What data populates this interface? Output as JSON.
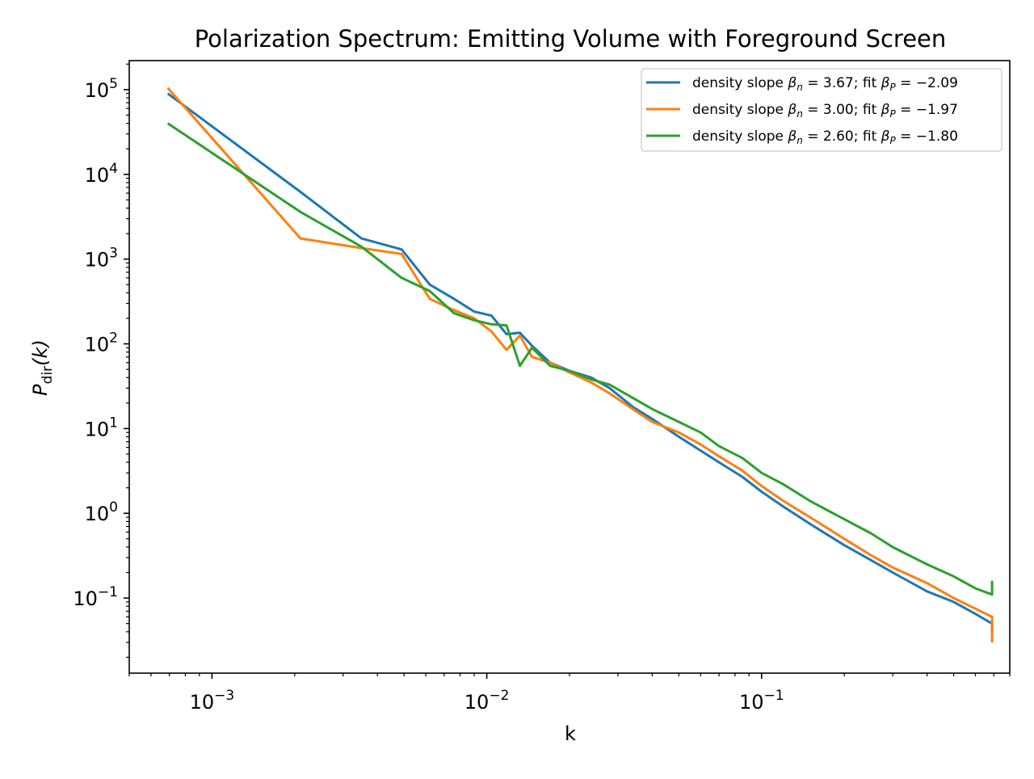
{
  "chart_data": {
    "type": "line",
    "title": "Polarization Spectrum: Emitting Volume with Foreground Screen",
    "xlabel": "k",
    "ylabel": {
      "main": "P",
      "sub": "dir",
      "rest": "(k)"
    },
    "xscale": "log",
    "yscale": "log",
    "xlim": [
      0.0005,
      0.8
    ],
    "ylim": [
      0.013,
      220000
    ],
    "grid": false,
    "legend_position": "top-right",
    "x_ticks": [
      {
        "value": 0.001,
        "base": "10",
        "exp": "−3"
      },
      {
        "value": 0.01,
        "base": "10",
        "exp": "−2"
      },
      {
        "value": 0.1,
        "base": "10",
        "exp": "−1"
      }
    ],
    "y_ticks": [
      {
        "value": 100000,
        "base": "10",
        "exp": "5"
      },
      {
        "value": 10000,
        "base": "10",
        "exp": "4"
      },
      {
        "value": 1000,
        "base": "10",
        "exp": "3"
      },
      {
        "value": 100,
        "base": "10",
        "exp": "2"
      },
      {
        "value": 10,
        "base": "10",
        "exp": "1"
      },
      {
        "value": 1,
        "base": "10",
        "exp": "0"
      },
      {
        "value": 0.1,
        "base": "10",
        "exp": "−1"
      }
    ],
    "series": [
      {
        "name": "density slope βn = 3.67; fit βP = −2.09",
        "legend_parts": {
          "prefix": "density slope ",
          "b1": "β",
          "s1": "n",
          "m1": " = 3.67; fit ",
          "b2": "β",
          "s2": "P",
          "m2": " = −2.09"
        },
        "color": "#1f77b4",
        "x": [
          0.00069,
          0.0021,
          0.0035,
          0.0049,
          0.0062,
          0.0076,
          0.009,
          0.0104,
          0.0118,
          0.0132,
          0.0146,
          0.017,
          0.02,
          0.024,
          0.028,
          0.034,
          0.04,
          0.05,
          0.06,
          0.07,
          0.085,
          0.1,
          0.12,
          0.15,
          0.2,
          0.25,
          0.3,
          0.4,
          0.5,
          0.6,
          0.69,
          0.69
        ],
        "y": [
          90000,
          6200,
          1750,
          1300,
          500,
          340,
          240,
          215,
          130,
          135,
          95,
          60,
          48,
          40,
          30,
          18,
          13,
          8,
          5.5,
          4.0,
          2.7,
          1.8,
          1.2,
          0.75,
          0.42,
          0.28,
          0.2,
          0.12,
          0.09,
          0.065,
          0.05,
          0.04
        ]
      },
      {
        "name": "density slope βn = 3.00; fit βP = −1.97",
        "legend_parts": {
          "prefix": "density slope ",
          "b1": "β",
          "s1": "n",
          "m1": " = 3.00; fit ",
          "b2": "β",
          "s2": "P",
          "m2": " = −1.97"
        },
        "color": "#ff7f0e",
        "x": [
          0.00069,
          0.0021,
          0.0035,
          0.0049,
          0.0062,
          0.0076,
          0.009,
          0.0104,
          0.0118,
          0.0132,
          0.0146,
          0.017,
          0.02,
          0.024,
          0.028,
          0.034,
          0.04,
          0.05,
          0.06,
          0.07,
          0.085,
          0.1,
          0.12,
          0.15,
          0.2,
          0.25,
          0.3,
          0.4,
          0.5,
          0.6,
          0.69,
          0.69
        ],
        "y": [
          105000,
          1750,
          1350,
          1150,
          340,
          250,
          200,
          140,
          85,
          125,
          70,
          60,
          46,
          35,
          26,
          17,
          12,
          9,
          6.5,
          4.7,
          3.2,
          2.1,
          1.4,
          0.9,
          0.5,
          0.32,
          0.23,
          0.15,
          0.1,
          0.075,
          0.06,
          0.03
        ]
      },
      {
        "name": "density slope βn = 2.60; fit βP = −1.80",
        "legend_parts": {
          "prefix": "density slope ",
          "b1": "β",
          "s1": "n",
          "m1": " = 2.60; fit ",
          "b2": "β",
          "s2": "P",
          "m2": " = −1.80"
        },
        "color": "#2ca02c",
        "x": [
          0.00069,
          0.0021,
          0.0035,
          0.0049,
          0.0062,
          0.0076,
          0.009,
          0.0104,
          0.0118,
          0.0132,
          0.0146,
          0.017,
          0.02,
          0.024,
          0.028,
          0.034,
          0.04,
          0.05,
          0.06,
          0.07,
          0.085,
          0.1,
          0.12,
          0.15,
          0.2,
          0.25,
          0.3,
          0.4,
          0.5,
          0.6,
          0.69,
          0.69
        ],
        "y": [
          40000,
          3600,
          1400,
          600,
          420,
          230,
          190,
          170,
          165,
          55,
          90,
          55,
          48,
          38,
          33,
          23,
          17,
          12,
          9,
          6.2,
          4.5,
          3.0,
          2.2,
          1.4,
          0.85,
          0.58,
          0.4,
          0.25,
          0.18,
          0.13,
          0.11,
          0.16
        ]
      }
    ]
  }
}
